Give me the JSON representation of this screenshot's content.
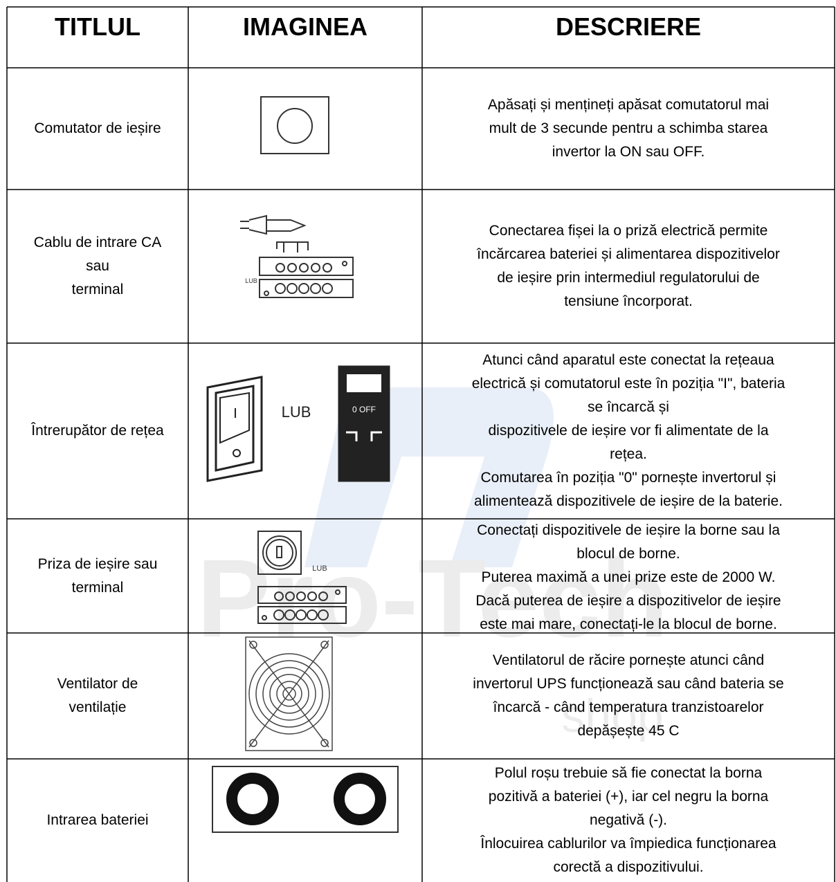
{
  "table": {
    "header": [
      "TITLUL",
      "IMAGINEA",
      "DESCRIERE"
    ],
    "rows": [
      {
        "title": [
          "Comutator de ieșire"
        ],
        "description": [
          "Apăsați și mențineți apăsat comutatorul mai",
          "mult de 3 secunde pentru a schimba starea",
          "invertor la ON sau OFF."
        ]
      },
      {
        "title": [
          "Cablu de intrare CA",
          "sau",
          "terminal"
        ],
        "image_labels": [
          "LUB"
        ],
        "description": [
          "Conectarea fișei la o priză electrică permite",
          "încărcarea bateriei și alimentarea dispozitivelor",
          "de ieșire prin intermediul regulatorului de",
          "tensiune încorporat."
        ]
      },
      {
        "title": [
          "Întrerupător de rețea"
        ],
        "image_labels": [
          "LUB",
          "0 OFF"
        ],
        "description": [
          "Atunci când aparatul este conectat la rețeaua",
          "electrică și comutatorul este în poziția \"I\", bateria",
          "se încarcă și",
          "dispozitivele de ieșire vor fi alimentate de la",
          "rețea.",
          "Comutarea în poziția \"0\" pornește invertorul și",
          "alimentează dispozitivele de ieșire de la baterie."
        ]
      },
      {
        "title": [
          "Priza de ieșire sau",
          "terminal"
        ],
        "image_labels": [
          "LUB"
        ],
        "description": [
          "Conectați dispozitivele de ieșire la borne sau la",
          "blocul de borne.",
          "Puterea maximă a unei prize este de 2000 W.",
          "Dacă puterea de ieșire a dispozitivelor de ieșire",
          "este mai mare, conectați-le la blocul de borne."
        ]
      },
      {
        "title": [
          "Ventilator de",
          "ventilație"
        ],
        "description": [
          "Ventilatorul de răcire pornește atunci când",
          "invertorul UPS funcționează sau când bateria se",
          "încarcă - când temperatura tranzistoarelor",
          "depășește 45 C"
        ]
      },
      {
        "title": [
          "Intrarea bateriei"
        ],
        "description": [
          "Polul roșu trebuie să fie conectat la borna",
          "pozitivă a bateriei (+), iar cel negru la borna",
          "negativă (-).",
          "Înlocuirea cablurilor va împiedica funcționarea",
          "corectă a dispozitivului."
        ]
      }
    ]
  },
  "watermark": [
    "Pro-Tech",
    "shop"
  ]
}
